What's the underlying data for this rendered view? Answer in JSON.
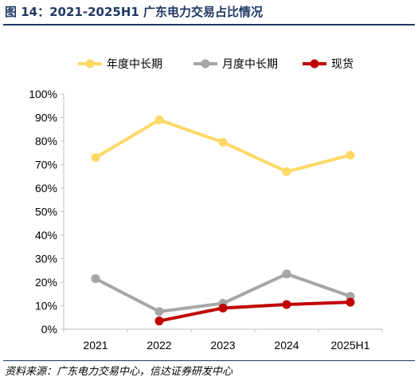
{
  "figure": {
    "title": "图 14：2021-2025H1 广东电力交易占比情况",
    "source": "资料来源：广东电力交易中心，信达证券研发中心"
  },
  "chart_data": {
    "type": "line",
    "categories": [
      "2021",
      "2022",
      "2023",
      "2024",
      "2025H1"
    ],
    "y_ticks": [
      "0%",
      "10%",
      "20%",
      "30%",
      "40%",
      "50%",
      "60%",
      "70%",
      "80%",
      "90%",
      "100%"
    ],
    "ylim": [
      0,
      100
    ],
    "legend_position": "top",
    "series": [
      {
        "name": "年度中长期",
        "color": "#ffd966",
        "values": [
          73,
          89,
          79.5,
          67,
          74
        ]
      },
      {
        "name": "月度中长期",
        "color": "#a6a6a6",
        "values": [
          21.5,
          7.5,
          11,
          23.5,
          14
        ]
      },
      {
        "name": "现货",
        "color": "#c00000",
        "values": [
          null,
          3.5,
          9,
          10.5,
          11.5
        ]
      }
    ]
  }
}
